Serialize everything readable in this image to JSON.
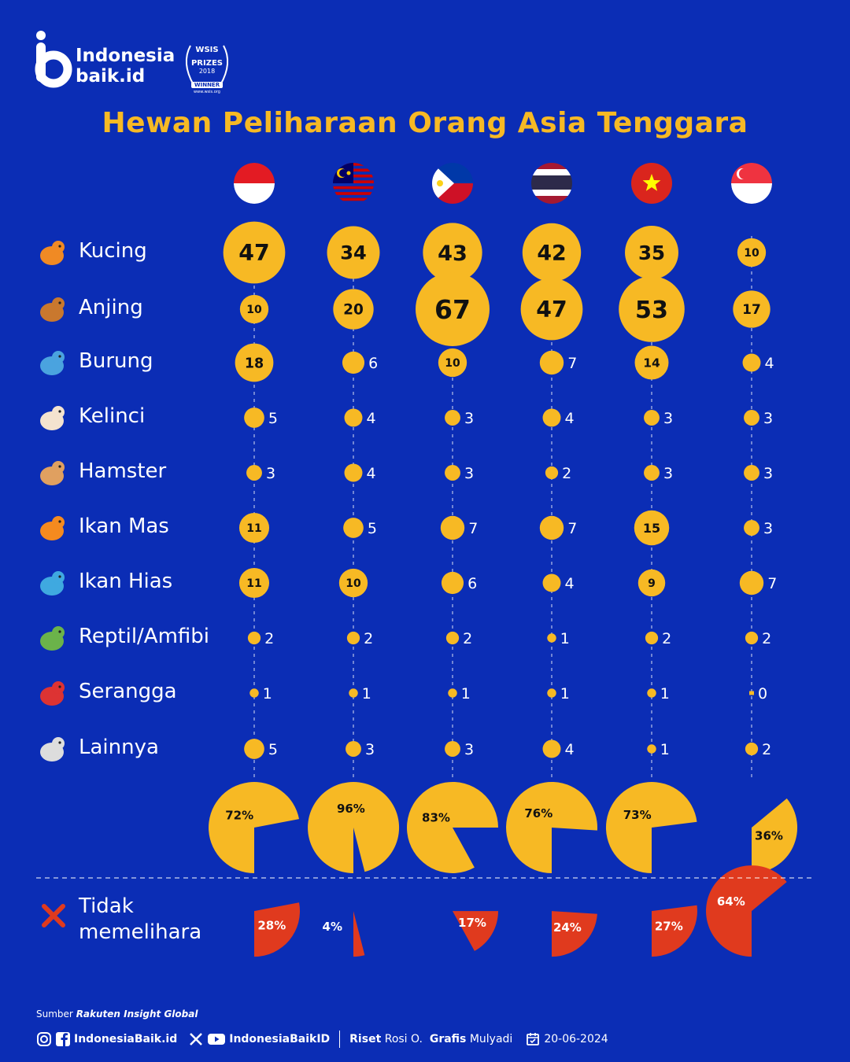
{
  "brand": {
    "name_line1": "Indonesia",
    "name_line2": "baik.id"
  },
  "award": {
    "line1": "WSIS",
    "line2": "PRIZES",
    "line3": "2018",
    "line4": "WINNER",
    "line5": "www.wsis.org"
  },
  "title": "Hewan Peliharaan Orang Asia Tenggara",
  "colors": {
    "background": "#0b2db5",
    "accent": "#f7b924",
    "nonown": "#e03a1e"
  },
  "countries": [
    {
      "flag": "indonesia-flag-icon"
    },
    {
      "flag": "malaysia-flag-icon"
    },
    {
      "flag": "philippines-flag-icon"
    },
    {
      "flag": "thailand-flag-icon"
    },
    {
      "flag": "vietnam-flag-icon"
    },
    {
      "flag": "singapore-flag-icon"
    }
  ],
  "chart_data": {
    "type": "bubble-matrix",
    "rows": [
      {
        "label": "Kucing",
        "icon": "cat-icon",
        "values": [
          47,
          34,
          43,
          42,
          35,
          10
        ]
      },
      {
        "label": "Anjing",
        "icon": "dog-icon",
        "values": [
          10,
          20,
          67,
          47,
          53,
          17
        ]
      },
      {
        "label": "Burung",
        "icon": "bird-icon",
        "values": [
          18,
          6,
          10,
          7,
          14,
          4
        ]
      },
      {
        "label": "Kelinci",
        "icon": "rabbit-icon",
        "values": [
          5,
          4,
          3,
          4,
          3,
          3
        ]
      },
      {
        "label": "Hamster",
        "icon": "hamster-icon",
        "values": [
          3,
          4,
          3,
          2,
          3,
          3
        ]
      },
      {
        "label": "Ikan Mas",
        "icon": "goldfish-icon",
        "values": [
          11,
          5,
          7,
          7,
          15,
          3
        ]
      },
      {
        "label": "Ikan Hias",
        "icon": "tropical-fish-icon",
        "values": [
          11,
          10,
          6,
          4,
          9,
          7
        ]
      },
      {
        "label": "Reptil/Amfibi",
        "icon": "lizard-icon",
        "values": [
          2,
          2,
          2,
          1,
          2,
          2
        ]
      },
      {
        "label": "Serangga",
        "icon": "ladybug-icon",
        "values": [
          1,
          1,
          1,
          1,
          1,
          0
        ]
      },
      {
        "label": "Lainnya",
        "icon": "other-animals-icon",
        "values": [
          5,
          3,
          3,
          4,
          1,
          2
        ]
      }
    ],
    "owners_percent": [
      72,
      96,
      83,
      76,
      73,
      36
    ],
    "owners_labels": [
      "72%",
      "96%",
      "83%",
      "76%",
      "73%",
      "36%"
    ],
    "nonowners_percent": [
      28,
      4,
      17,
      24,
      27,
      64
    ],
    "nonowners_labels": [
      "28%",
      "4%",
      "17%",
      "24%",
      "27%",
      "64%"
    ],
    "nonowners_label_line1": "Tidak",
    "nonowners_label_line2": "memelihara"
  },
  "footer": {
    "source_prefix": "Sumber",
    "source": "Rakuten Insight Global",
    "handle1": "IndonesiaBaik.id",
    "handle2": "IndonesiaBaikID",
    "riset_label": "Riset",
    "riset_name": "Rosi O.",
    "grafis_label": "Grafis",
    "grafis_name": "Mulyadi",
    "date": "20-06-2024"
  }
}
